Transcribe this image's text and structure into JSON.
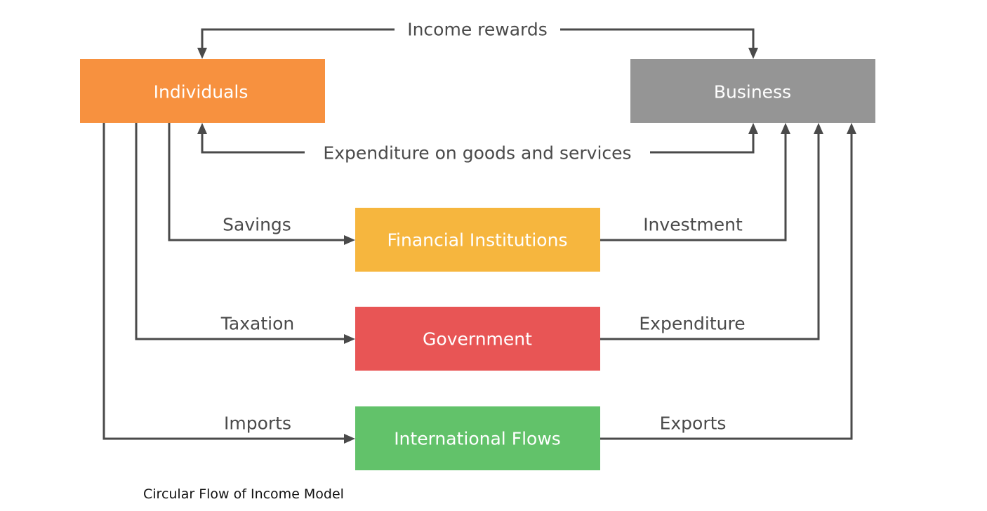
{
  "colors": {
    "individuals": "#f7913f",
    "business": "#959595",
    "financial_institutions": "#f6b63e",
    "government": "#e85555",
    "international_flows": "#62c26a",
    "arrows": "#4a4a4a"
  },
  "nodes": {
    "individuals": "Individuals",
    "business": "Business",
    "financial_institutions": "Financial Institutions",
    "government": "Government",
    "international_flows": "International Flows"
  },
  "flows": {
    "income_rewards": "Income rewards",
    "expenditure_goods_services": "Expenditure on goods and services",
    "savings": "Savings",
    "investment": "Investment",
    "taxation": "Taxation",
    "expenditure": "Expenditure",
    "imports": "Imports",
    "exports": "Exports"
  },
  "caption": "Circular Flow of Income Model"
}
